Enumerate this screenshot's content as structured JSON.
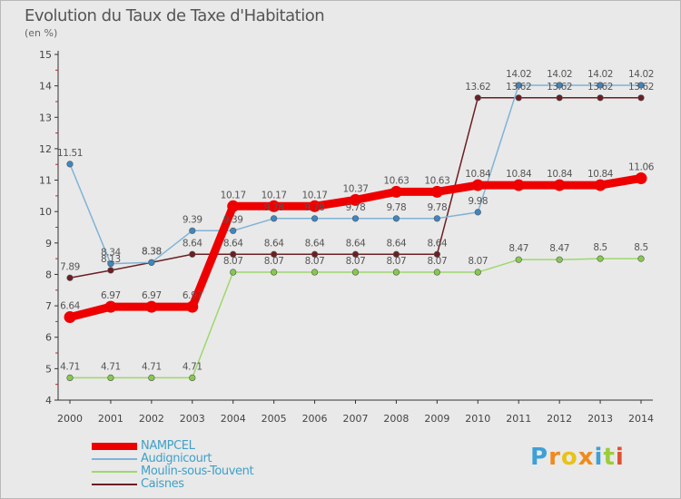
{
  "title": "Evolution du Taux de Taxe d'Habitation",
  "unit": "(en %)",
  "logo": "Proxiti",
  "chart_data": {
    "type": "line",
    "title": "Evolution du Taux de Taxe d'Habitation",
    "ylabel": "(en %)",
    "xlabel": "",
    "ylim": [
      4,
      15
    ],
    "yticks": [
      4,
      5,
      6,
      7,
      8,
      9,
      10,
      11,
      12,
      13,
      14,
      15
    ],
    "categories": [
      "2000",
      "2001",
      "2002",
      "2003",
      "2004",
      "2005",
      "2006",
      "2007",
      "2008",
      "2009",
      "2010",
      "2011",
      "2012",
      "2013",
      "2014"
    ],
    "grid": false,
    "legend": "bottom-left",
    "series": [
      {
        "name": "Caisnes",
        "color": "#6b1f24",
        "values": [
          7.89,
          8.13,
          8.38,
          8.64,
          8.64,
          8.64,
          8.64,
          8.64,
          8.64,
          8.64,
          13.62,
          13.62,
          13.62,
          13.62,
          13.62
        ]
      },
      {
        "name": "Moulin-sous-Touvent",
        "color": "#9ed86a",
        "values": [
          4.71,
          4.71,
          4.71,
          4.71,
          8.07,
          8.07,
          8.07,
          8.07,
          8.07,
          8.07,
          8.07,
          8.47,
          8.47,
          8.5,
          8.5
        ]
      },
      {
        "name": "Audignicourt",
        "color": "#7fb3d6",
        "values": [
          11.51,
          8.34,
          8.38,
          9.39,
          9.39,
          9.78,
          9.78,
          9.78,
          9.78,
          9.78,
          9.98,
          14.02,
          14.02,
          14.02,
          14.02
        ]
      },
      {
        "name": "NAMPCEL",
        "color": "#ee0000",
        "values": [
          6.64,
          6.97,
          6.97,
          6.97,
          10.17,
          10.17,
          10.17,
          10.37,
          10.63,
          10.63,
          10.84,
          10.84,
          10.84,
          10.84,
          11.06
        ]
      }
    ],
    "data_labels": [
      {
        "series": "Caisnes",
        "labels": [
          "7.89",
          "8.13",
          "8.38",
          "8.64",
          "8.64",
          "8.64",
          "8.64",
          "8.64",
          "8.64",
          "8.64",
          "13.62",
          "13.62",
          "13.62",
          "13.62",
          "13.62"
        ]
      },
      {
        "series": "Moulin-sous-Touvent",
        "labels": [
          "4.71",
          "4.71",
          "4.71",
          "4.71",
          "8.07",
          "8.07",
          "8.07",
          "8.07",
          "8.07",
          "8.07",
          "8.07",
          "8.47",
          "8.47",
          "8.5",
          "8.5"
        ]
      },
      {
        "series": "Audignicourt",
        "labels": [
          "11.51",
          "8.34",
          "8.38",
          "9.39",
          "9.39",
          "9.78",
          "9.78",
          "9.78",
          "9.78",
          "9.78",
          "9.98",
          "14.02",
          "14.02",
          "14.02",
          "14.02"
        ]
      },
      {
        "series": "NAMPCEL",
        "labels": [
          "6.64",
          "6.97",
          "6.97",
          "6.97",
          "10.17",
          "10.17",
          "10.17",
          "10.37",
          "10.63",
          "10.63",
          "10.84",
          "10.84",
          "10.84",
          "10.84",
          "11.06"
        ]
      }
    ]
  }
}
